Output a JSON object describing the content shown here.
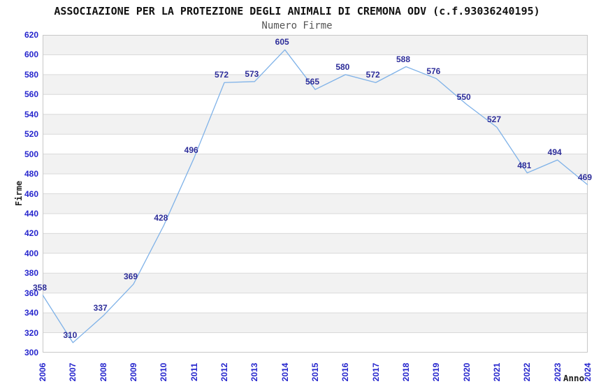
{
  "chart_data": {
    "type": "line",
    "title": "ASSOCIAZIONE PER LA PROTEZIONE DEGLI ANIMALI DI CREMONA ODV (c.f.93036240195)",
    "subtitle": "Numero Firme",
    "xlabel": "Anno",
    "ylabel": "Firme",
    "x": [
      "2006",
      "2007",
      "2008",
      "2009",
      "2010",
      "2011",
      "2012",
      "2013",
      "2014",
      "2015",
      "2016",
      "2017",
      "2018",
      "2019",
      "2020",
      "2021",
      "2022",
      "2023",
      "2024"
    ],
    "values": [
      358,
      310,
      337,
      369,
      428,
      496,
      572,
      573,
      605,
      565,
      580,
      572,
      588,
      576,
      550,
      527,
      481,
      494,
      469
    ],
    "ylim": [
      300,
      620
    ],
    "ytick_step": 20,
    "grid": "horizontal-only",
    "background_bands": "alternating",
    "legend": "none",
    "markers": "none",
    "data_labels_shown": true,
    "colors": {
      "line": "#7fb2e8",
      "tick_labels": "#2525cd",
      "data_labels": "#2d2d99",
      "band": "#f2f2f2",
      "gridline": "#d9d9d9",
      "border": "#c8c8c8",
      "title": "#111111",
      "subtitle": "#555555",
      "axis_titles": "#222222"
    }
  }
}
